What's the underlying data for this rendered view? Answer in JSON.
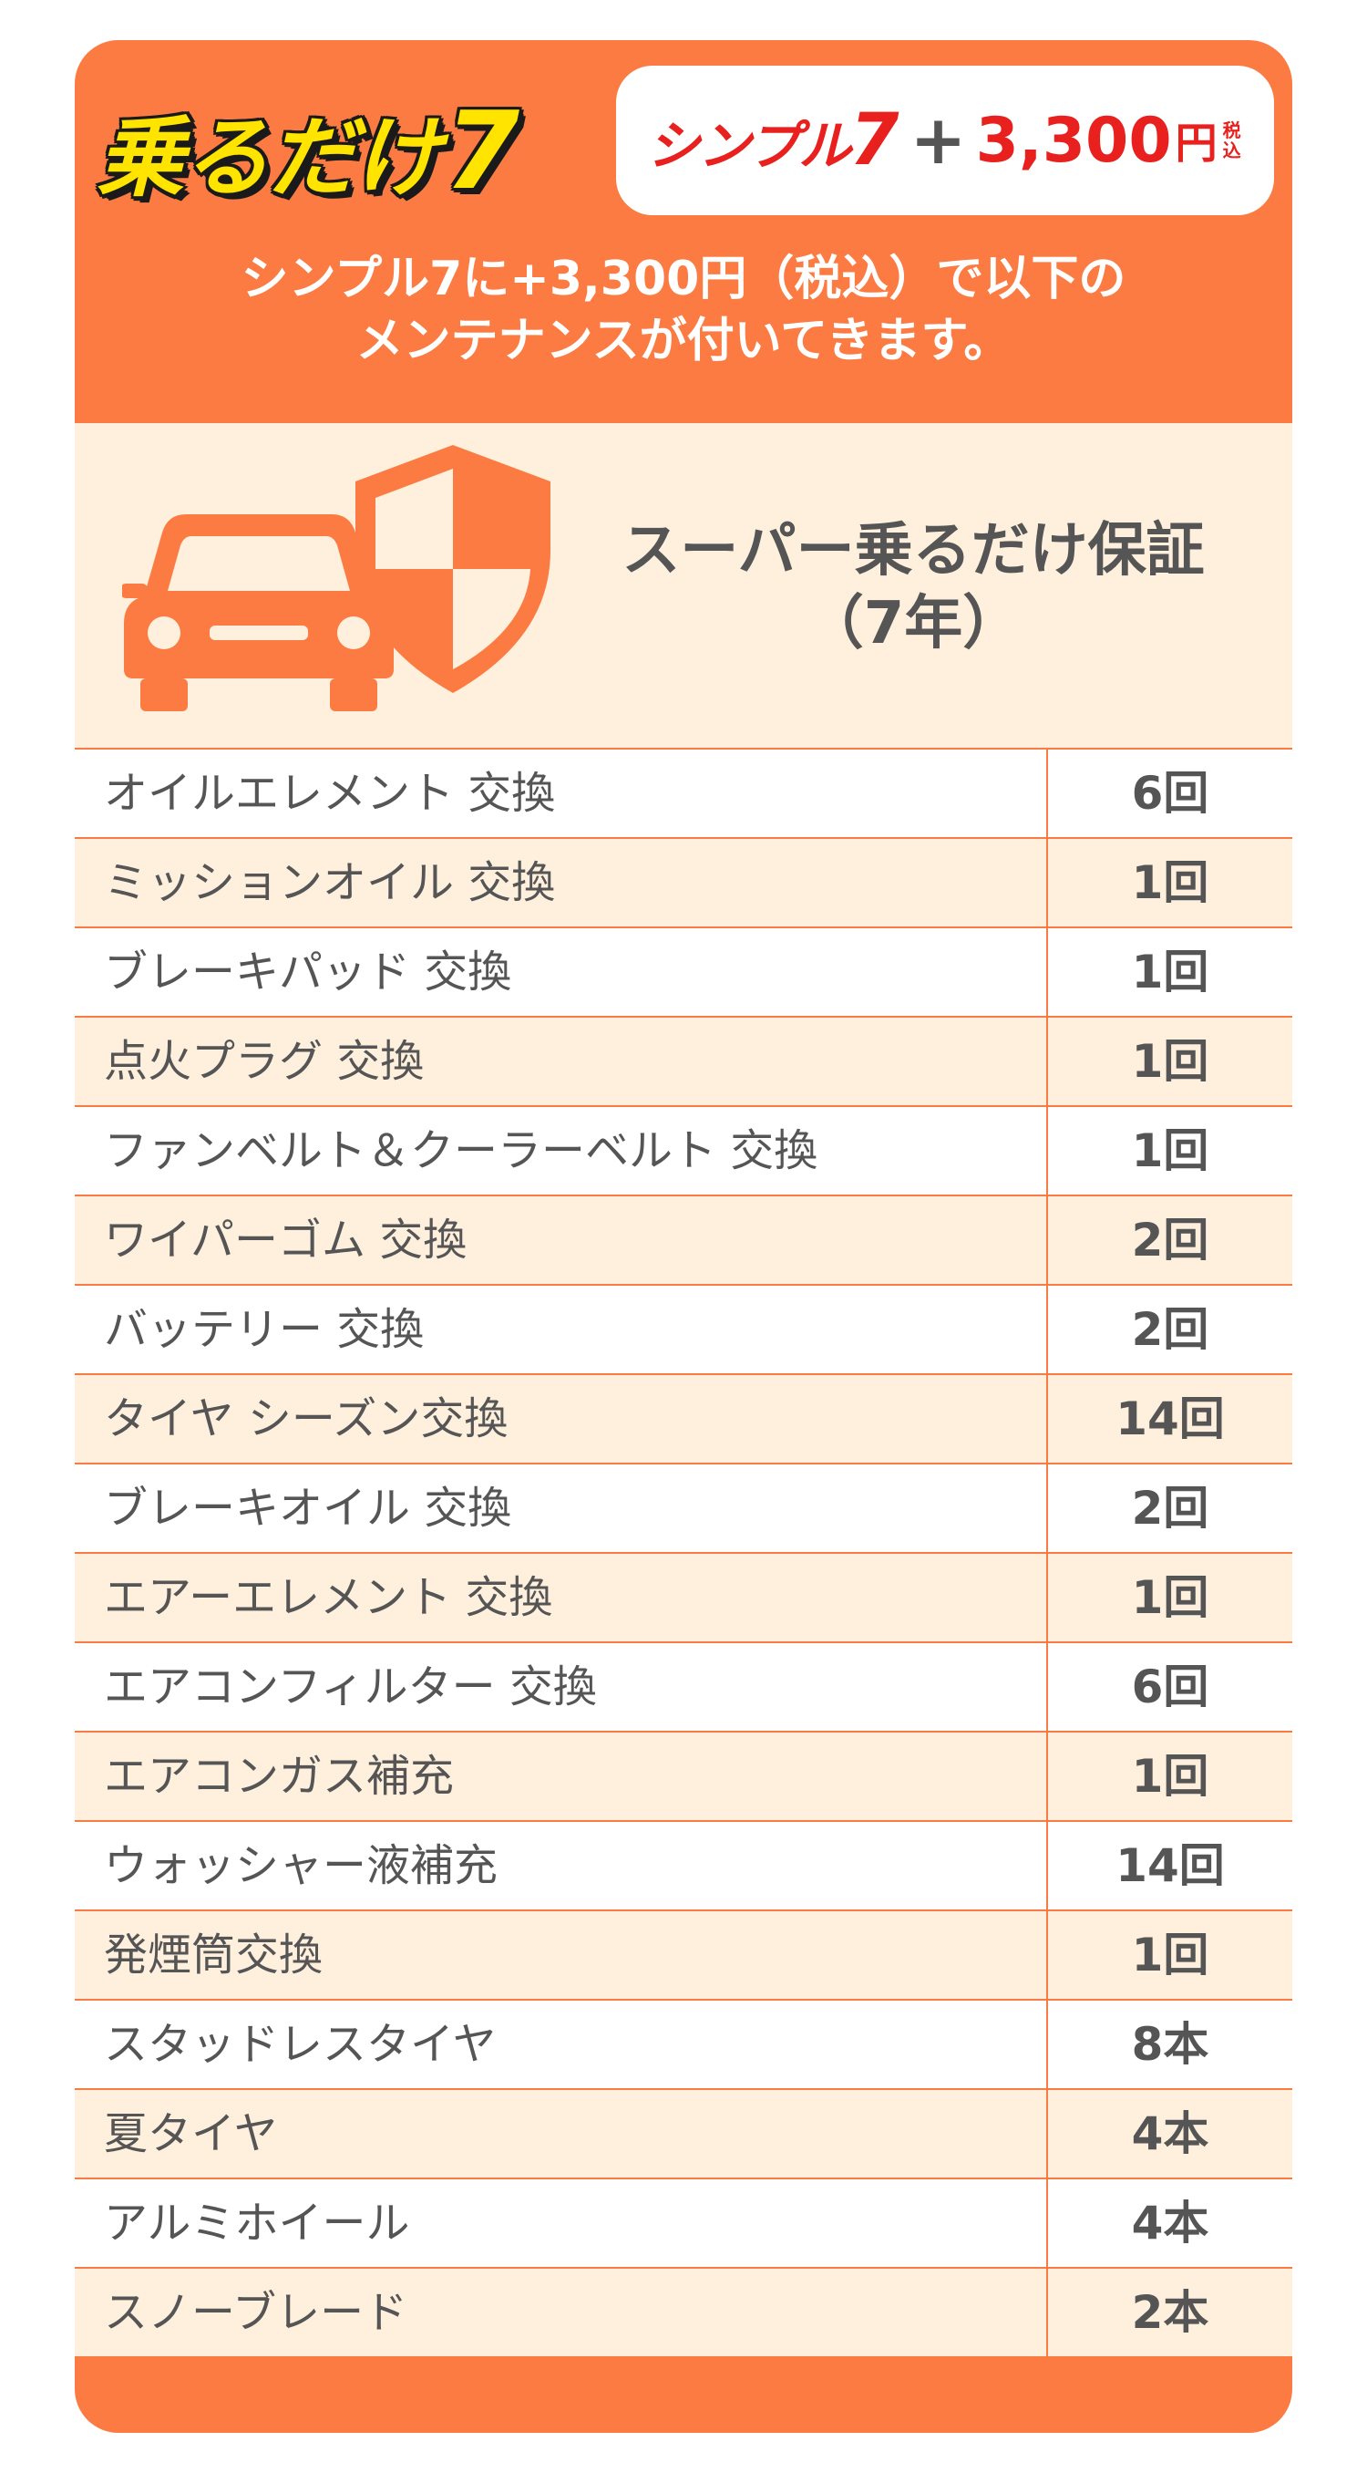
{
  "header": {
    "brand_text": "乗るだけ",
    "brand_num": "7",
    "plan_text": "シンプル",
    "plan_num": "7",
    "plus": "+",
    "price": "3,300",
    "yen": "円",
    "tax": "税込",
    "subtitle_line1": "シンプル7に+3,300円（税込）で以下の",
    "subtitle_line2": "メンテナンスが付いてきます。"
  },
  "panel": {
    "title_line1": "スーパー乗るだけ保証",
    "title_line2": "（7年）",
    "car_icon": "car-icon",
    "shield_icon": "shield-icon"
  },
  "items": [
    {
      "name": "オイルエレメント 交換",
      "count": "6回"
    },
    {
      "name": "ミッションオイル 交換",
      "count": "1回"
    },
    {
      "name": "ブレーキパッド 交換",
      "count": "1回"
    },
    {
      "name": "点火プラグ 交換",
      "count": "1回"
    },
    {
      "name": "ファンベルト＆クーラーベルト 交換",
      "count": "1回"
    },
    {
      "name": "ワイパーゴム 交換",
      "count": "2回"
    },
    {
      "name": "バッテリー 交換",
      "count": "2回"
    },
    {
      "name": "タイヤ シーズン交換",
      "count": "14回"
    },
    {
      "name": "ブレーキオイル 交換",
      "count": "2回"
    },
    {
      "name": "エアーエレメント 交換",
      "count": "1回"
    },
    {
      "name": "エアコンフィルター 交換",
      "count": "6回"
    },
    {
      "name": "エアコンガス補充",
      "count": "1回"
    },
    {
      "name": "ウォッシャー液補充",
      "count": "14回"
    },
    {
      "name": "発煙筒交換",
      "count": "1回"
    },
    {
      "name": "スタッドレスタイヤ",
      "count": "8本"
    },
    {
      "name": "夏タイヤ",
      "count": "4本"
    },
    {
      "name": "アルミホイール",
      "count": "4本"
    },
    {
      "name": "スノーブレード",
      "count": "2本"
    }
  ],
  "colors": {
    "accent": "#fb7b42",
    "brand_yellow": "#ffe400",
    "price_red": "#e8211e",
    "panel_bg": "#fff0dd",
    "text_gray": "#555555"
  }
}
